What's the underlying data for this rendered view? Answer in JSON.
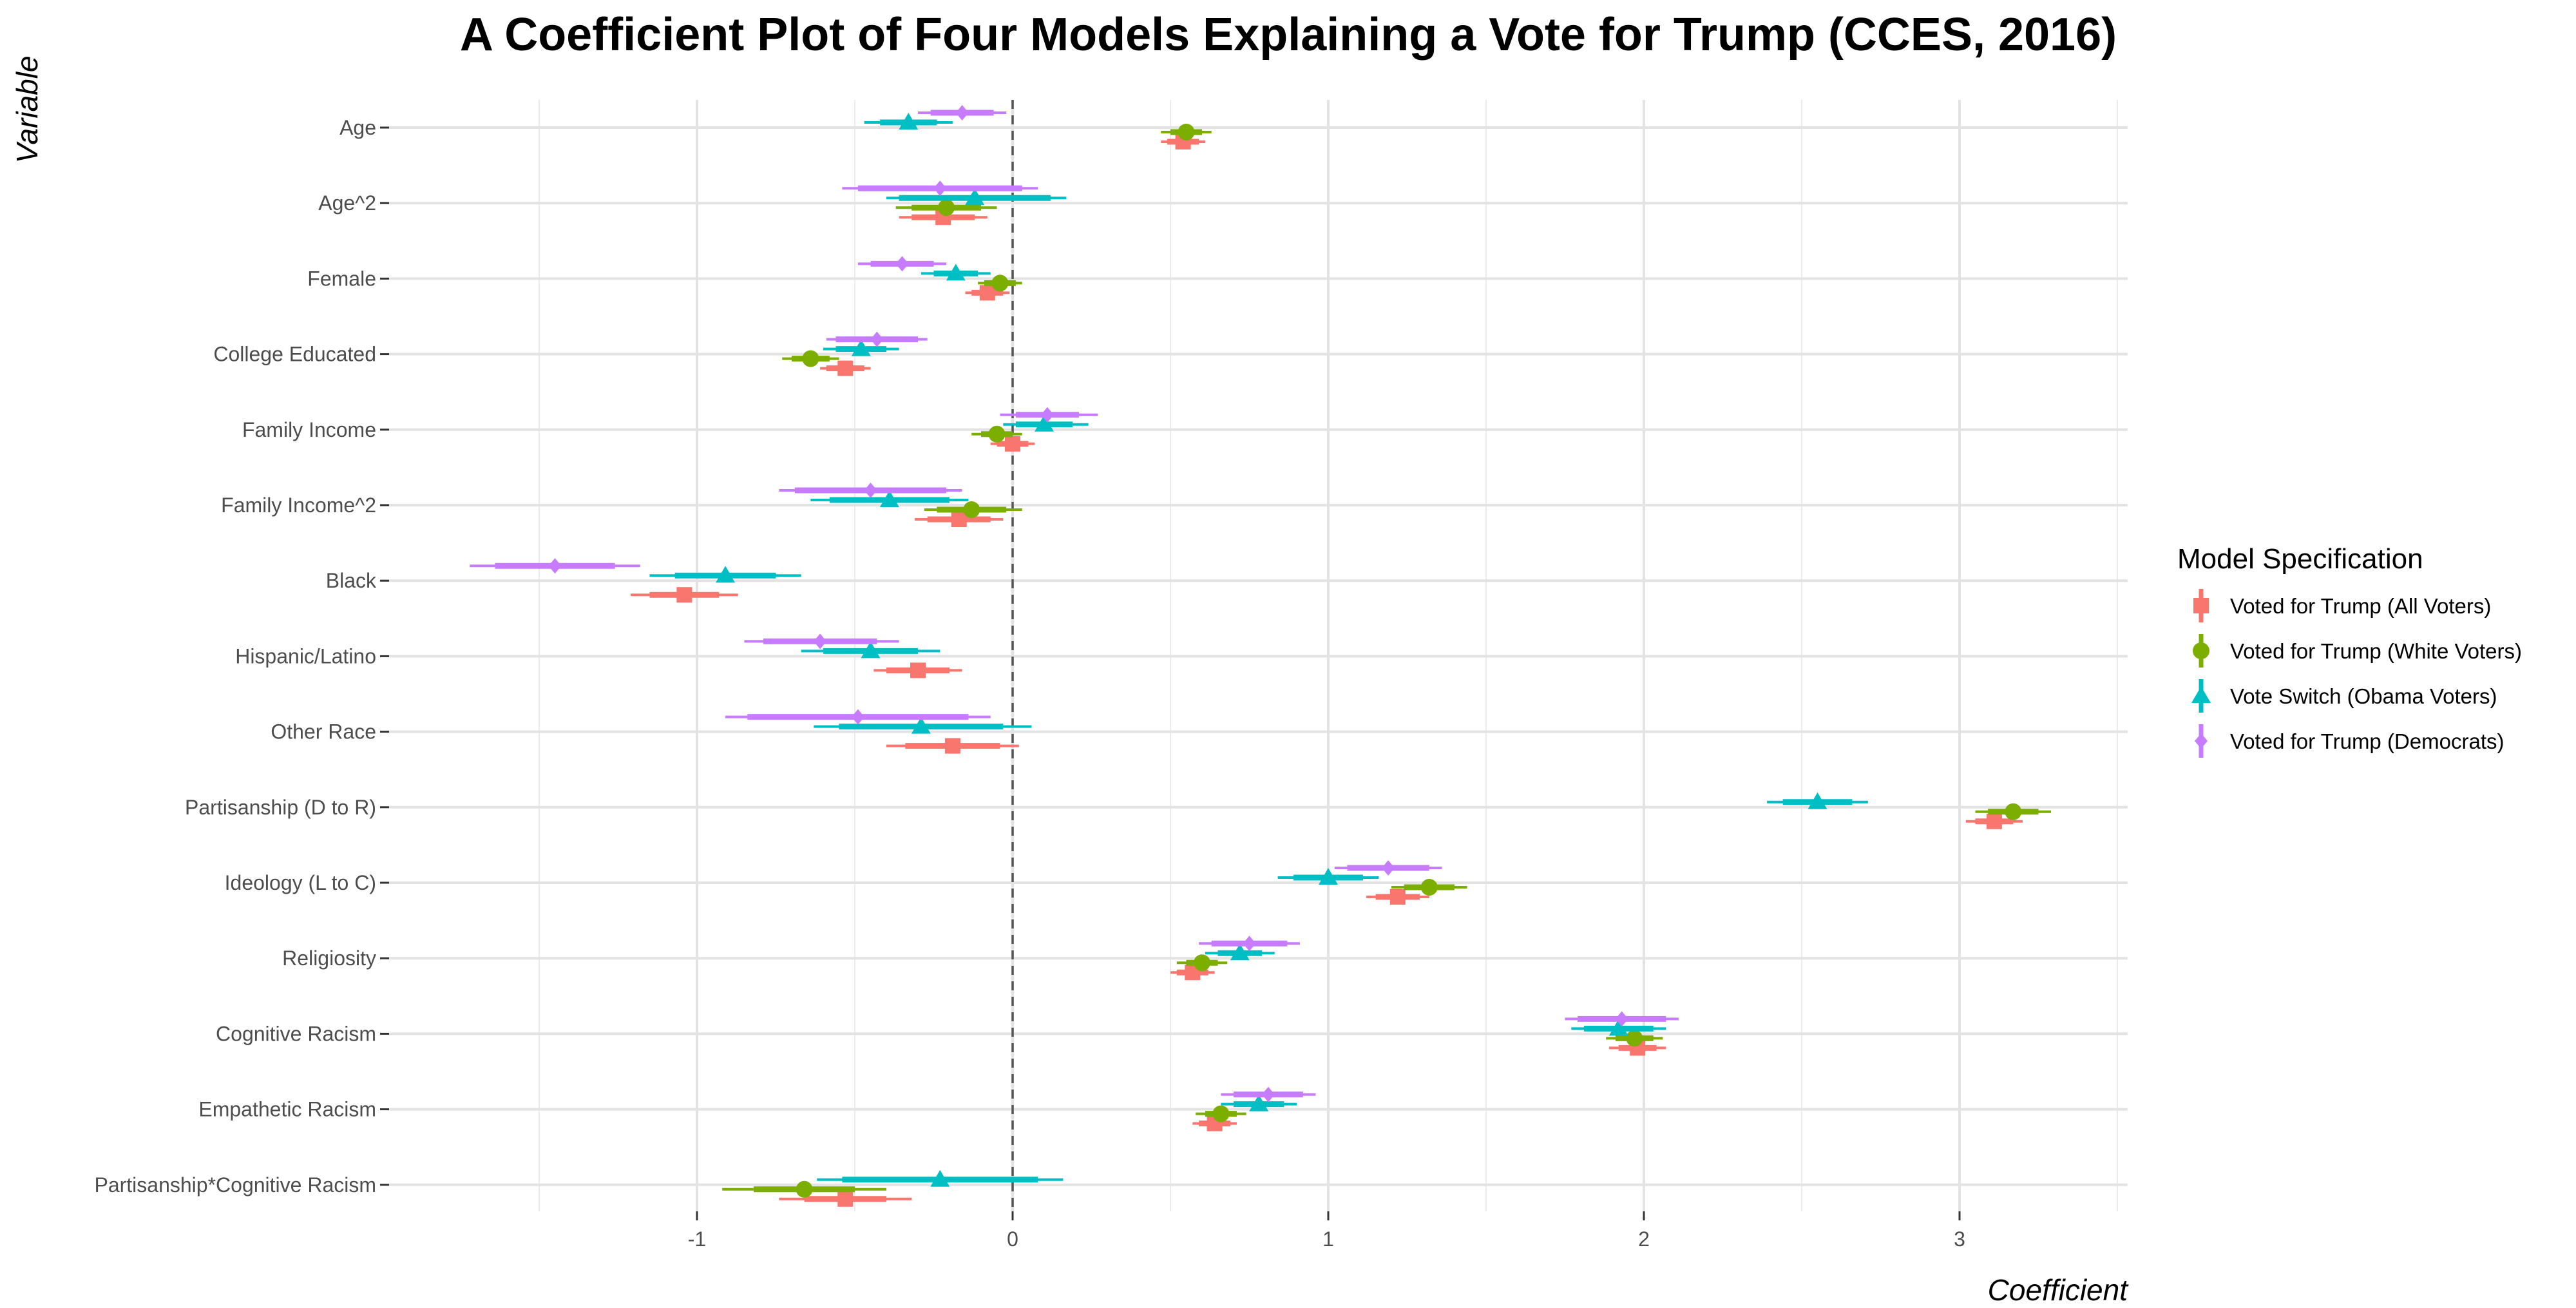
{
  "chart_data": {
    "type": "scatter",
    "subtype": "coefficient-plot",
    "title": "A Coefficient Plot of Four Models Explaining a Vote for Trump (CCES, 2016)",
    "xlabel": "Coefficient",
    "ylabel": "Variable",
    "xlim": [
      -1.97,
      3.55
    ],
    "xticks": [
      -1,
      0,
      1,
      2,
      3
    ],
    "reference_line": 0,
    "grid": true,
    "legend": {
      "title": "Model Specification",
      "position": "right"
    },
    "variables": [
      "Age",
      "Age^2",
      "Female",
      "College Educated",
      "Family Income",
      "Family Income^2",
      "Black",
      "Hispanic/Latino",
      "Other Race",
      "Partisanship (D to R)",
      "Ideology (L to C)",
      "Religiosity",
      "Cognitive Racism",
      "Empathetic Racism",
      "Partisanship*Cognitive Racism"
    ],
    "series": [
      {
        "name": "Voted for Trump (All Voters)",
        "color": "#F8766D",
        "shape": "square",
        "points": [
          {
            "est": 0.54,
            "lo90": 0.49,
            "hi90": 0.59,
            "lo95": 0.47,
            "hi95": 0.61
          },
          {
            "est": -0.22,
            "lo90": -0.32,
            "hi90": -0.12,
            "lo95": -0.36,
            "hi95": -0.08
          },
          {
            "est": -0.08,
            "lo90": -0.13,
            "hi90": -0.03,
            "lo95": -0.15,
            "hi95": -0.01
          },
          {
            "est": -0.53,
            "lo90": -0.59,
            "hi90": -0.47,
            "lo95": -0.61,
            "hi95": -0.45
          },
          {
            "est": 0.0,
            "lo90": -0.05,
            "hi90": 0.05,
            "lo95": -0.07,
            "hi95": 0.07
          },
          {
            "est": -0.17,
            "lo90": -0.27,
            "hi90": -0.07,
            "lo95": -0.31,
            "hi95": -0.03
          },
          {
            "est": -1.04,
            "lo90": -1.15,
            "hi90": -0.93,
            "lo95": -1.21,
            "hi95": -0.87
          },
          {
            "est": -0.3,
            "lo90": -0.4,
            "hi90": -0.2,
            "lo95": -0.44,
            "hi95": -0.16
          },
          {
            "est": -0.19,
            "lo90": -0.34,
            "hi90": -0.04,
            "lo95": -0.4,
            "hi95": 0.02
          },
          {
            "est": 3.11,
            "lo90": 3.05,
            "hi90": 3.17,
            "lo95": 3.02,
            "hi95": 3.2
          },
          {
            "est": 1.22,
            "lo90": 1.15,
            "hi90": 1.29,
            "lo95": 1.12,
            "hi95": 1.32
          },
          {
            "est": 0.57,
            "lo90": 0.52,
            "hi90": 0.62,
            "lo95": 0.5,
            "hi95": 0.64
          },
          {
            "est": 1.98,
            "lo90": 1.92,
            "hi90": 2.04,
            "lo95": 1.89,
            "hi95": 2.07
          },
          {
            "est": 0.64,
            "lo90": 0.59,
            "hi90": 0.69,
            "lo95": 0.57,
            "hi95": 0.71
          },
          {
            "est": -0.53,
            "lo90": -0.66,
            "hi90": -0.4,
            "lo95": -0.74,
            "hi95": -0.32
          }
        ]
      },
      {
        "name": "Voted for Trump (White Voters)",
        "color": "#7CAE00",
        "shape": "circle",
        "points": [
          {
            "est": 0.55,
            "lo90": 0.5,
            "hi90": 0.6,
            "lo95": 0.47,
            "hi95": 0.63
          },
          {
            "est": -0.21,
            "lo90": -0.32,
            "hi90": -0.1,
            "lo95": -0.37,
            "hi95": -0.05
          },
          {
            "est": -0.04,
            "lo90": -0.09,
            "hi90": 0.01,
            "lo95": -0.11,
            "hi95": 0.03
          },
          {
            "est": -0.64,
            "lo90": -0.7,
            "hi90": -0.58,
            "lo95": -0.73,
            "hi95": -0.55
          },
          {
            "est": -0.05,
            "lo90": -0.1,
            "hi90": 0.0,
            "lo95": -0.13,
            "hi95": 0.03
          },
          {
            "est": -0.13,
            "lo90": -0.24,
            "hi90": -0.02,
            "lo95": -0.28,
            "hi95": 0.03
          },
          null,
          null,
          null,
          {
            "est": 3.17,
            "lo90": 3.09,
            "hi90": 3.25,
            "lo95": 3.05,
            "hi95": 3.29
          },
          {
            "est": 1.32,
            "lo90": 1.24,
            "hi90": 1.4,
            "lo95": 1.2,
            "hi95": 1.44
          },
          {
            "est": 0.6,
            "lo90": 0.55,
            "hi90": 0.65,
            "lo95": 0.52,
            "hi95": 0.68
          },
          {
            "est": 1.97,
            "lo90": 1.91,
            "hi90": 2.03,
            "lo95": 1.88,
            "hi95": 2.06
          },
          {
            "est": 0.66,
            "lo90": 0.61,
            "hi90": 0.71,
            "lo95": 0.58,
            "hi95": 0.74
          },
          {
            "est": -0.66,
            "lo90": -0.82,
            "hi90": -0.5,
            "lo95": -0.92,
            "hi95": -0.4
          }
        ]
      },
      {
        "name": "Vote Switch (Obama Voters)",
        "color": "#00BFC4",
        "shape": "triangle",
        "points": [
          {
            "est": -0.33,
            "lo90": -0.42,
            "hi90": -0.24,
            "lo95": -0.47,
            "hi95": -0.19
          },
          {
            "est": -0.12,
            "lo90": -0.36,
            "hi90": 0.12,
            "lo95": -0.4,
            "hi95": 0.17
          },
          {
            "est": -0.18,
            "lo90": -0.25,
            "hi90": -0.11,
            "lo95": -0.29,
            "hi95": -0.07
          },
          {
            "est": -0.48,
            "lo90": -0.56,
            "hi90": -0.4,
            "lo95": -0.6,
            "hi95": -0.36
          },
          {
            "est": 0.1,
            "lo90": 0.01,
            "hi90": 0.19,
            "lo95": -0.03,
            "hi95": 0.24
          },
          {
            "est": -0.39,
            "lo90": -0.58,
            "hi90": -0.2,
            "lo95": -0.64,
            "hi95": -0.14
          },
          {
            "est": -0.91,
            "lo90": -1.07,
            "hi90": -0.75,
            "lo95": -1.15,
            "hi95": -0.67
          },
          {
            "est": -0.45,
            "lo90": -0.6,
            "hi90": -0.3,
            "lo95": -0.67,
            "hi95": -0.23
          },
          {
            "est": -0.29,
            "lo90": -0.55,
            "hi90": -0.03,
            "lo95": -0.63,
            "hi95": 0.06
          },
          {
            "est": 2.55,
            "lo90": 2.44,
            "hi90": 2.66,
            "lo95": 2.39,
            "hi95": 2.71
          },
          {
            "est": 1.0,
            "lo90": 0.89,
            "hi90": 1.11,
            "lo95": 0.84,
            "hi95": 1.16
          },
          {
            "est": 0.72,
            "lo90": 0.65,
            "hi90": 0.79,
            "lo95": 0.61,
            "hi95": 0.83
          },
          {
            "est": 1.92,
            "lo90": 1.81,
            "hi90": 2.03,
            "lo95": 1.77,
            "hi95": 2.07
          },
          {
            "est": 0.78,
            "lo90": 0.7,
            "hi90": 0.86,
            "lo95": 0.66,
            "hi95": 0.9
          },
          {
            "est": -0.23,
            "lo90": -0.54,
            "hi90": 0.08,
            "lo95": -0.62,
            "hi95": 0.16
          }
        ]
      },
      {
        "name": "Voted for Trump (Democrats)",
        "color": "#C77CFF",
        "shape": "diamond",
        "points": [
          {
            "est": -0.16,
            "lo90": -0.26,
            "hi90": -0.06,
            "lo95": -0.3,
            "hi95": -0.02
          },
          {
            "est": -0.23,
            "lo90": -0.49,
            "hi90": 0.03,
            "lo95": -0.54,
            "hi95": 0.08
          },
          {
            "est": -0.35,
            "lo90": -0.45,
            "hi90": -0.25,
            "lo95": -0.49,
            "hi95": -0.21
          },
          {
            "est": -0.43,
            "lo90": -0.56,
            "hi90": -0.3,
            "lo95": -0.59,
            "hi95": -0.27
          },
          {
            "est": 0.11,
            "lo90": 0.01,
            "hi90": 0.21,
            "lo95": -0.04,
            "hi95": 0.27
          },
          {
            "est": -0.45,
            "lo90": -0.69,
            "hi90": -0.21,
            "lo95": -0.74,
            "hi95": -0.16
          },
          {
            "est": -1.45,
            "lo90": -1.64,
            "hi90": -1.26,
            "lo95": -1.72,
            "hi95": -1.18
          },
          {
            "est": -0.61,
            "lo90": -0.79,
            "hi90": -0.43,
            "lo95": -0.85,
            "hi95": -0.36
          },
          {
            "est": -0.49,
            "lo90": -0.84,
            "hi90": -0.14,
            "lo95": -0.91,
            "hi95": -0.07
          },
          null,
          {
            "est": 1.19,
            "lo90": 1.06,
            "hi90": 1.32,
            "lo95": 1.02,
            "hi95": 1.36
          },
          {
            "est": 0.75,
            "lo90": 0.63,
            "hi90": 0.87,
            "lo95": 0.59,
            "hi95": 0.91
          },
          {
            "est": 1.93,
            "lo90": 1.79,
            "hi90": 2.07,
            "lo95": 1.75,
            "hi95": 2.11
          },
          {
            "est": 0.81,
            "lo90": 0.7,
            "hi90": 0.92,
            "lo95": 0.66,
            "hi95": 0.96
          },
          null
        ]
      }
    ]
  }
}
